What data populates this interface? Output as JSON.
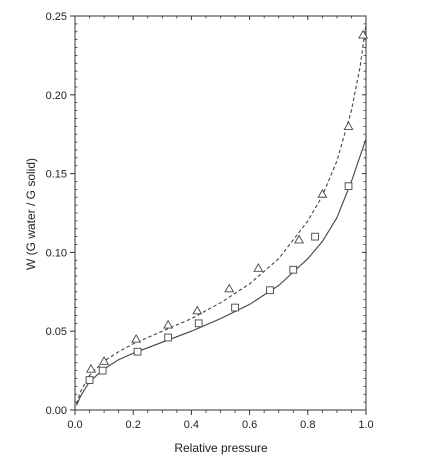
{
  "chart_data": {
    "type": "scatter",
    "title": "",
    "xlabel": "Relative pressure",
    "ylabel": "W (G water / G solid)",
    "xlim": [
      0,
      1.0
    ],
    "ylim": [
      0,
      0.25
    ],
    "xticks": [
      0.0,
      0.2,
      0.4,
      0.6,
      0.8,
      1.0
    ],
    "xtick_labels": [
      "0.0",
      "0.2",
      "0.4",
      "0.6",
      "0.8",
      "1.0"
    ],
    "yticks": [
      0.0,
      0.05,
      0.1,
      0.15,
      0.2,
      0.25
    ],
    "ytick_labels": [
      "0.00",
      "0.05",
      "0.10",
      "0.15",
      "0.20",
      "0.25"
    ],
    "grid": false,
    "legend": "none",
    "colors": {
      "axis": "#333333",
      "series": "#444444"
    },
    "series": [
      {
        "marker": "triangle",
        "fit_line": "dashed",
        "points": [
          {
            "x": 0.055,
            "y": 0.026
          },
          {
            "x": 0.1,
            "y": 0.031
          },
          {
            "x": 0.21,
            "y": 0.045
          },
          {
            "x": 0.32,
            "y": 0.054
          },
          {
            "x": 0.42,
            "y": 0.063
          },
          {
            "x": 0.53,
            "y": 0.077
          },
          {
            "x": 0.63,
            "y": 0.09
          },
          {
            "x": 0.77,
            "y": 0.108
          },
          {
            "x": 0.85,
            "y": 0.137
          },
          {
            "x": 0.94,
            "y": 0.18
          },
          {
            "x": 0.99,
            "y": 0.238
          }
        ],
        "fit": [
          {
            "x": 0.005,
            "y": 0.004
          },
          {
            "x": 0.02,
            "y": 0.012
          },
          {
            "x": 0.05,
            "y": 0.022
          },
          {
            "x": 0.1,
            "y": 0.031
          },
          {
            "x": 0.15,
            "y": 0.037
          },
          {
            "x": 0.2,
            "y": 0.042
          },
          {
            "x": 0.3,
            "y": 0.05
          },
          {
            "x": 0.4,
            "y": 0.058
          },
          {
            "x": 0.5,
            "y": 0.068
          },
          {
            "x": 0.6,
            "y": 0.08
          },
          {
            "x": 0.7,
            "y": 0.096
          },
          {
            "x": 0.8,
            "y": 0.12
          },
          {
            "x": 0.85,
            "y": 0.136
          },
          {
            "x": 0.9,
            "y": 0.158
          },
          {
            "x": 0.95,
            "y": 0.19
          },
          {
            "x": 0.98,
            "y": 0.218
          },
          {
            "x": 1.0,
            "y": 0.245
          }
        ]
      },
      {
        "marker": "square",
        "fit_line": "solid",
        "points": [
          {
            "x": 0.05,
            "y": 0.019
          },
          {
            "x": 0.095,
            "y": 0.025
          },
          {
            "x": 0.215,
            "y": 0.037
          },
          {
            "x": 0.32,
            "y": 0.046
          },
          {
            "x": 0.425,
            "y": 0.055
          },
          {
            "x": 0.55,
            "y": 0.065
          },
          {
            "x": 0.67,
            "y": 0.076
          },
          {
            "x": 0.75,
            "y": 0.089
          },
          {
            "x": 0.825,
            "y": 0.11
          },
          {
            "x": 0.94,
            "y": 0.142
          }
        ],
        "fit": [
          {
            "x": 0.005,
            "y": 0.003
          },
          {
            "x": 0.02,
            "y": 0.009
          },
          {
            "x": 0.05,
            "y": 0.018
          },
          {
            "x": 0.1,
            "y": 0.026
          },
          {
            "x": 0.15,
            "y": 0.032
          },
          {
            "x": 0.2,
            "y": 0.036
          },
          {
            "x": 0.3,
            "y": 0.043
          },
          {
            "x": 0.4,
            "y": 0.05
          },
          {
            "x": 0.5,
            "y": 0.058
          },
          {
            "x": 0.6,
            "y": 0.067
          },
          {
            "x": 0.7,
            "y": 0.079
          },
          {
            "x": 0.8,
            "y": 0.096
          },
          {
            "x": 0.85,
            "y": 0.107
          },
          {
            "x": 0.9,
            "y": 0.122
          },
          {
            "x": 0.95,
            "y": 0.145
          },
          {
            "x": 1.0,
            "y": 0.172
          }
        ]
      }
    ]
  }
}
